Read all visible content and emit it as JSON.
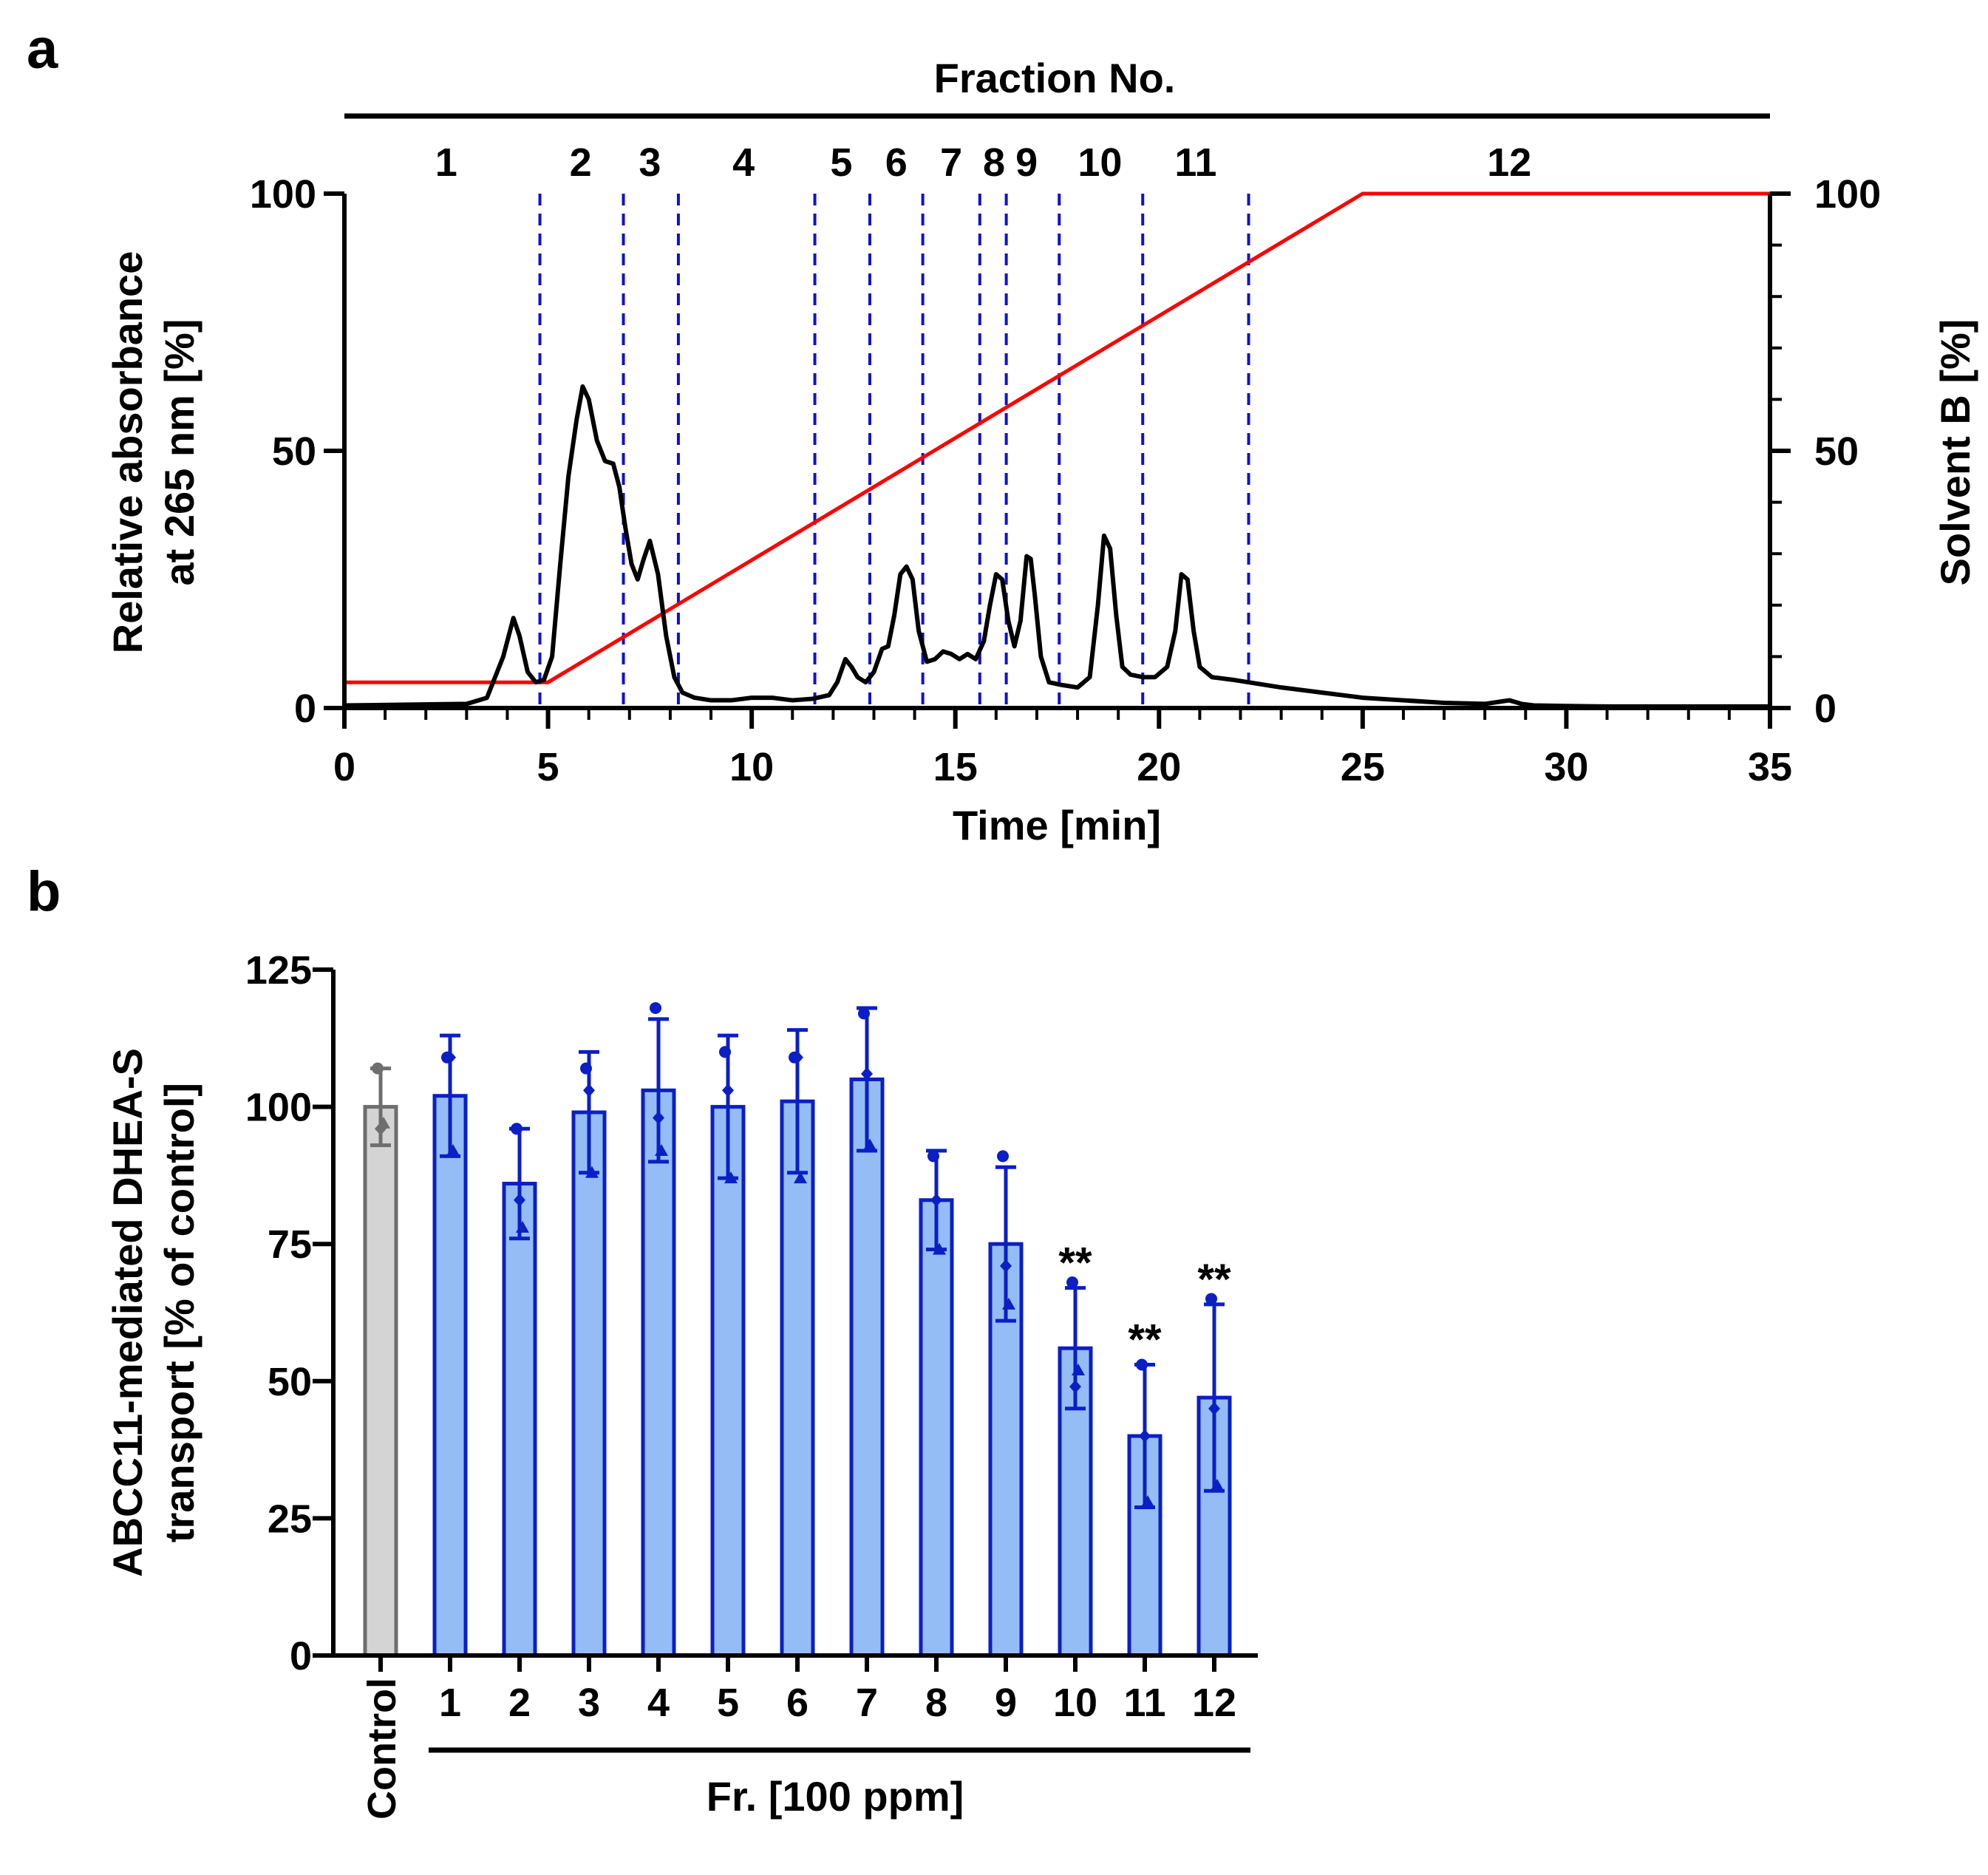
{
  "chart_data": [
    {
      "panel": "a",
      "type": "line",
      "title": "",
      "top_label": "Fraction No.",
      "xlabel": "Time [min]",
      "ylabel_line1": "Relative absorbance",
      "ylabel_line2": "at 265 nm [%]",
      "y2label": "Solvent B [%]",
      "xlim": [
        0,
        35
      ],
      "ylim": [
        0,
        100
      ],
      "y2lim": [
        0,
        100
      ],
      "x_ticks": [
        0,
        5,
        10,
        15,
        20,
        25,
        30,
        35
      ],
      "y_ticks": [
        0,
        50,
        100
      ],
      "y2_ticks": [
        0,
        50,
        100
      ],
      "fraction_boundaries": [
        4.8,
        6.85,
        8.2,
        11.55,
        12.9,
        14.2,
        15.6,
        16.25,
        17.55,
        19.6,
        22.2
      ],
      "fraction_labels": [
        {
          "label": "1",
          "time": 2.5
        },
        {
          "label": "2",
          "time": 5.8
        },
        {
          "label": "3",
          "time": 7.5
        },
        {
          "label": "4",
          "time": 9.8
        },
        {
          "label": "5",
          "time": 12.2
        },
        {
          "label": "6",
          "time": 13.55
        },
        {
          "label": "7",
          "time": 14.9
        },
        {
          "label": "8",
          "time": 15.95
        },
        {
          "label": "9",
          "time": 16.75
        },
        {
          "label": "10",
          "time": 18.55
        },
        {
          "label": "11",
          "time": 20.9
        },
        {
          "label": "12",
          "time": 28.6
        }
      ],
      "series": [
        {
          "name": "Relative absorbance at 265 nm",
          "color": "#000000",
          "x": [
            0,
            3.0,
            3.5,
            3.9,
            4.15,
            4.3,
            4.5,
            4.7,
            4.9,
            5.1,
            5.3,
            5.5,
            5.7,
            5.85,
            6.0,
            6.2,
            6.4,
            6.6,
            6.75,
            6.9,
            7.05,
            7.2,
            7.35,
            7.5,
            7.7,
            7.9,
            8.1,
            8.3,
            8.6,
            9.0,
            9.5,
            10.0,
            10.5,
            11.0,
            11.5,
            11.9,
            12.1,
            12.3,
            12.45,
            12.6,
            12.8,
            13.0,
            13.2,
            13.35,
            13.5,
            13.65,
            13.8,
            13.95,
            14.1,
            14.3,
            14.5,
            14.7,
            14.9,
            15.1,
            15.3,
            15.5,
            15.7,
            15.85,
            16.0,
            16.15,
            16.3,
            16.45,
            16.6,
            16.75,
            16.85,
            16.95,
            17.1,
            17.3,
            17.6,
            18.0,
            18.3,
            18.5,
            18.65,
            18.8,
            18.95,
            19.1,
            19.3,
            19.6,
            19.9,
            20.2,
            20.4,
            20.55,
            20.7,
            20.85,
            21.0,
            21.3,
            21.8,
            22.2,
            23.0,
            24.0,
            25.0,
            26.0,
            27.0,
            28.0,
            28.6,
            28.9,
            29.2,
            30.0,
            31.0,
            32.0,
            33.0,
            34.0,
            35.0
          ],
          "values": [
            0.5,
            0.8,
            2.0,
            10.0,
            17.5,
            14.0,
            7.0,
            5.0,
            5.5,
            10.0,
            28.0,
            45.0,
            56.0,
            62.5,
            60.0,
            52.0,
            48.0,
            47.5,
            43.0,
            35.0,
            28.0,
            25.0,
            29.0,
            32.5,
            26.0,
            14.0,
            6.0,
            3.0,
            2.0,
            1.5,
            1.5,
            2.0,
            2.0,
            1.5,
            1.8,
            2.5,
            5.0,
            9.5,
            8.0,
            6.0,
            5.0,
            7.0,
            11.5,
            12.0,
            18.0,
            26.0,
            27.5,
            25.0,
            15.0,
            9.0,
            9.5,
            11.0,
            10.5,
            9.5,
            10.5,
            9.5,
            13.0,
            20.0,
            26.0,
            25.0,
            17.0,
            12.0,
            17.0,
            29.5,
            29.0,
            22.0,
            10.0,
            5.0,
            4.5,
            4.0,
            6.0,
            20.0,
            33.5,
            31.0,
            18.0,
            8.0,
            6.5,
            6.0,
            6.0,
            8.0,
            15.0,
            26.0,
            25.0,
            15.0,
            8.0,
            6.0,
            5.5,
            5.0,
            4.0,
            3.0,
            2.0,
            1.5,
            1.0,
            0.8,
            1.5,
            0.8,
            0.5,
            0.4,
            0.3,
            0.3,
            0.3,
            0.3,
            0.3
          ]
        },
        {
          "name": "Solvent B",
          "color": "#ff0000",
          "axis": "right",
          "x": [
            0,
            5,
            25,
            35
          ],
          "values": [
            5,
            5,
            100,
            100
          ]
        }
      ]
    },
    {
      "panel": "b",
      "type": "bar",
      "title": "",
      "xlabel": "Fr. [100 ppm]",
      "ylabel_line1": "ABCC11-mediated DHEA-S",
      "ylabel_line2": "transport [% of control]",
      "ylim": [
        0,
        125
      ],
      "y_ticks": [
        0,
        25,
        50,
        75,
        100,
        125
      ],
      "categories": [
        "Control",
        "1",
        "2",
        "3",
        "4",
        "5",
        "6",
        "7",
        "8",
        "9",
        "10",
        "11",
        "12"
      ],
      "values": [
        100,
        102,
        86,
        99,
        103,
        100,
        101,
        105,
        83,
        75,
        56,
        40,
        47
      ],
      "errors": [
        7,
        11,
        10,
        11,
        13,
        13,
        13,
        13,
        9,
        14,
        11,
        13,
        17
      ],
      "points": [
        [
          107,
          97,
          96
        ],
        [
          109,
          92,
          109
        ],
        [
          96,
          78,
          83
        ],
        [
          107,
          88,
          103
        ],
        [
          118,
          92,
          98
        ],
        [
          110,
          87,
          103
        ],
        [
          109,
          87,
          109
        ],
        [
          117,
          93,
          106
        ],
        [
          91,
          74,
          83
        ],
        [
          91,
          64,
          71
        ],
        [
          68,
          52,
          49
        ],
        [
          53,
          28,
          40
        ],
        [
          65,
          31,
          45
        ]
      ],
      "significance": [
        "",
        "",
        "",
        "",
        "",
        "",
        "",
        "",
        "",
        "",
        "**",
        "**",
        "**"
      ],
      "colors": {
        "control_fill": "#d4d4d4",
        "control_edge": "#6e6e6e",
        "fraction_fill": "#94bdf5",
        "fraction_edge": "#0b1fc4"
      }
    }
  ],
  "panel_labels": {
    "a": "a",
    "b": "b"
  }
}
